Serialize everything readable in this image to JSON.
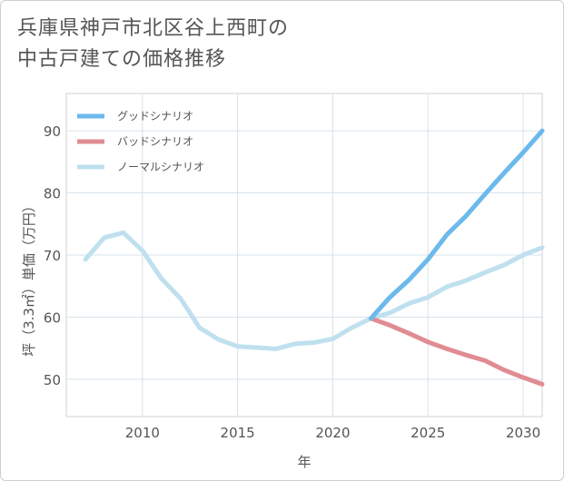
{
  "title": {
    "line1": "兵庫県神戸市北区谷上西町の",
    "line2": "中古戸建ての価格推移"
  },
  "chart_data": {
    "type": "line",
    "xlabel": "年",
    "ylabel": "坪（3.3㎡）単価（万円）",
    "xlim": [
      2006,
      2031
    ],
    "ylim": [
      44,
      96
    ],
    "x_ticks": [
      "2010",
      "2015",
      "2020",
      "2025",
      "2030"
    ],
    "y_ticks": [
      "50",
      "60",
      "70",
      "80",
      "90"
    ],
    "legend_position": "top-left",
    "series": [
      {
        "name": "グッドシナリオ",
        "color": "#6cb9ec",
        "x": [
          2022,
          2023,
          2024,
          2025,
          2026,
          2027,
          2028,
          2029,
          2030,
          2031
        ],
        "y": [
          59.8,
          63.2,
          66.0,
          69.3,
          73.3,
          76.3,
          79.8,
          83.2,
          86.5,
          90.0
        ]
      },
      {
        "name": "バッドシナリオ",
        "color": "#e08c92",
        "x": [
          2022,
          2023,
          2024,
          2025,
          2026,
          2027,
          2028,
          2029,
          2030,
          2031
        ],
        "y": [
          59.8,
          58.7,
          57.4,
          56.0,
          54.9,
          53.9,
          53.0,
          51.5,
          50.3,
          49.2
        ]
      },
      {
        "name": "ノーマルシナリオ",
        "color": "#bfe0ee",
        "x": [
          2007,
          2008,
          2009,
          2010,
          2011,
          2012,
          2013,
          2014,
          2015,
          2016,
          2017,
          2018,
          2019,
          2020,
          2021,
          2022,
          2023,
          2024,
          2025,
          2026,
          2027,
          2028,
          2029,
          2030,
          2031
        ],
        "y": [
          69.3,
          72.8,
          73.6,
          70.7,
          66.2,
          63.0,
          58.3,
          56.4,
          55.3,
          55.1,
          54.9,
          55.7,
          55.9,
          56.5,
          58.3,
          59.8,
          60.7,
          62.2,
          63.2,
          64.9,
          65.9,
          67.2,
          68.4,
          70.0,
          71.2
        ]
      }
    ]
  }
}
